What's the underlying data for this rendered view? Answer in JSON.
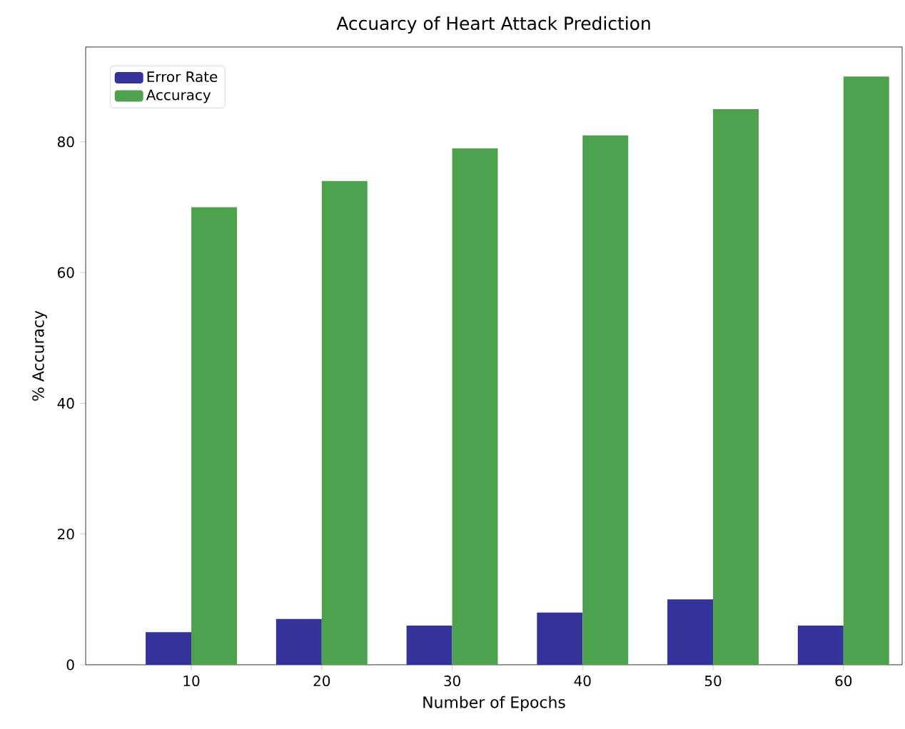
{
  "chart_data": {
    "type": "bar",
    "title": "Accuarcy of Heart Attack Prediction",
    "xlabel": "Number of Epochs",
    "ylabel": "% Accuracy",
    "categories": [
      "10",
      "20",
      "30",
      "40",
      "50",
      "60"
    ],
    "series": [
      {
        "name": "Error Rate",
        "color": "#333399",
        "values": [
          5,
          7,
          6,
          8,
          10,
          6
        ]
      },
      {
        "name": "Accuracy",
        "color": "#4ea24e",
        "values": [
          70,
          74,
          79,
          81,
          85,
          90
        ]
      }
    ],
    "ylim": [
      0,
      94.5
    ],
    "yticks": [
      0,
      20,
      40,
      60,
      80
    ],
    "legend": "top left",
    "grid": false
  }
}
